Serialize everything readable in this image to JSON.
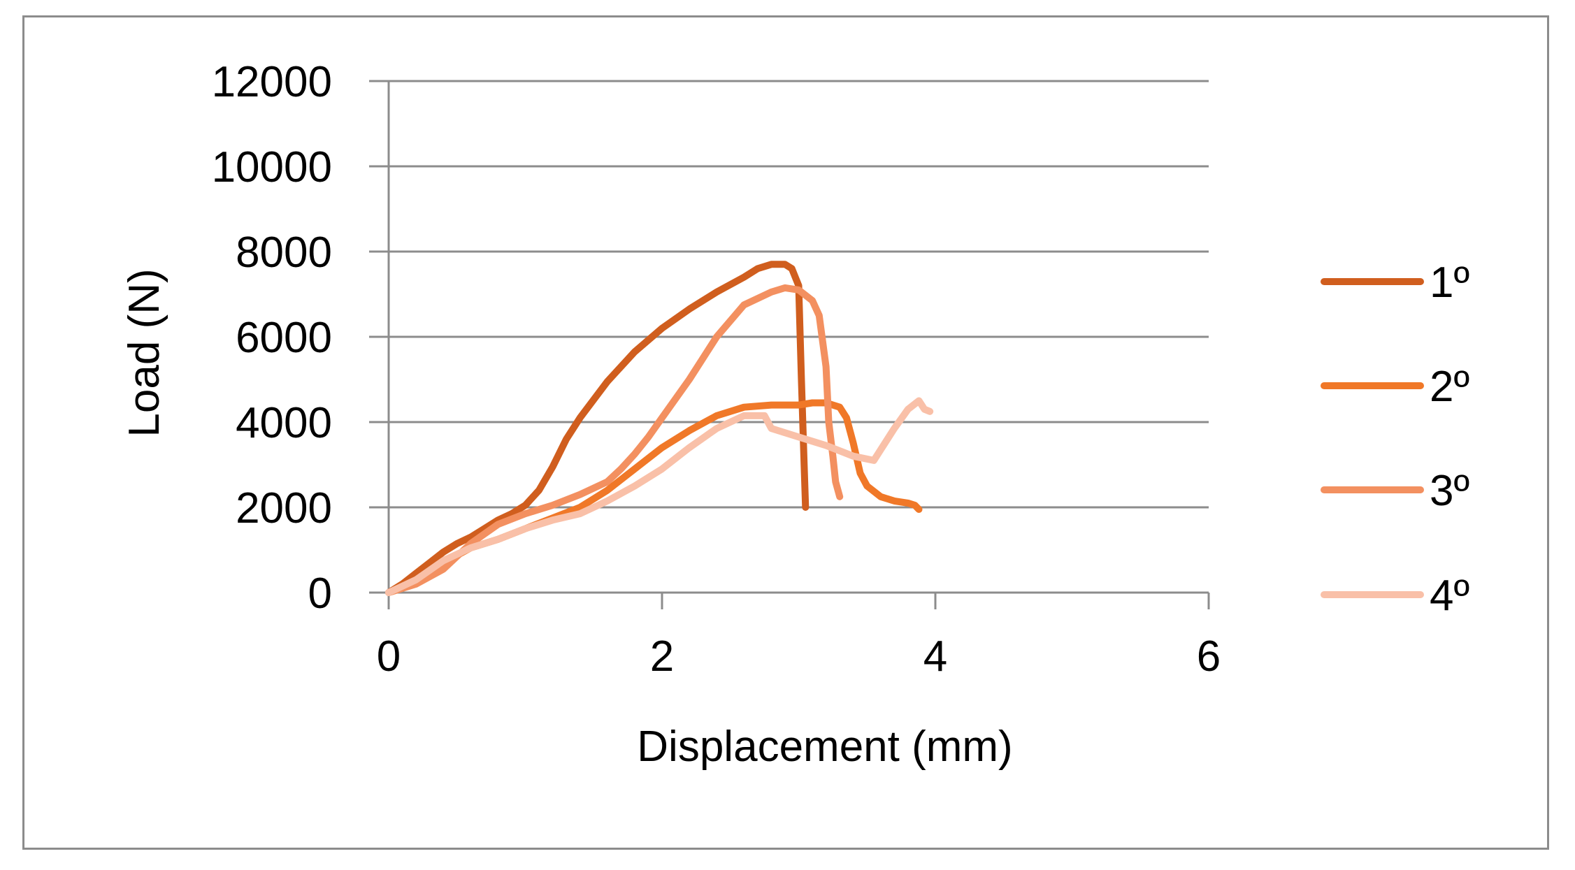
{
  "chart_data": {
    "type": "line",
    "title": "",
    "xlabel": "Displacement (mm)",
    "ylabel": "Load (N)",
    "xlim": [
      0,
      6
    ],
    "ylim": [
      0,
      12000
    ],
    "xticks": [
      0,
      2,
      4,
      6
    ],
    "yticks": [
      0,
      2000,
      4000,
      6000,
      8000,
      10000,
      12000
    ],
    "xtick_labels": [
      "0",
      "2",
      "4",
      "6"
    ],
    "ytick_labels": [
      "0",
      "2000",
      "4000",
      "6000",
      "8000",
      "10000",
      "12000"
    ],
    "grid": "horizontal",
    "legend_position": "right",
    "series": [
      {
        "name": "1º",
        "color": "#D05E1E",
        "x": [
          0.0,
          0.1,
          0.2,
          0.3,
          0.4,
          0.5,
          0.6,
          0.7,
          0.8,
          0.9,
          1.0,
          1.1,
          1.2,
          1.3,
          1.4,
          1.6,
          1.8,
          2.0,
          2.2,
          2.4,
          2.6,
          2.7,
          2.8,
          2.9,
          2.95,
          3.0,
          3.02,
          3.04,
          3.05
        ],
        "y": [
          0,
          200,
          450,
          700,
          950,
          1150,
          1300,
          1500,
          1700,
          1850,
          2050,
          2400,
          2950,
          3600,
          4100,
          4950,
          5650,
          6200,
          6650,
          7050,
          7400,
          7600,
          7700,
          7700,
          7600,
          7200,
          5000,
          3000,
          2000
        ]
      },
      {
        "name": "2º",
        "color": "#F07828",
        "x": [
          0.0,
          0.1,
          0.2,
          0.4,
          0.6,
          0.8,
          1.0,
          1.2,
          1.4,
          1.6,
          1.8,
          2.0,
          2.2,
          2.4,
          2.6,
          2.8,
          3.0,
          3.1,
          3.2,
          3.3,
          3.35,
          3.4,
          3.45,
          3.5,
          3.6,
          3.7,
          3.8,
          3.85,
          3.88
        ],
        "y": [
          0,
          100,
          300,
          700,
          1050,
          1250,
          1500,
          1750,
          2000,
          2400,
          2900,
          3400,
          3800,
          4150,
          4350,
          4400,
          4400,
          4450,
          4450,
          4350,
          4100,
          3500,
          2800,
          2500,
          2250,
          2150,
          2100,
          2050,
          1950
        ]
      },
      {
        "name": "3º",
        "color": "#F39060",
        "x": [
          0.0,
          0.2,
          0.4,
          0.6,
          0.8,
          1.0,
          1.2,
          1.4,
          1.6,
          1.7,
          1.8,
          1.9,
          2.0,
          2.2,
          2.4,
          2.6,
          2.8,
          2.9,
          3.0,
          3.1,
          3.15,
          3.2,
          3.22,
          3.25,
          3.27,
          3.3
        ],
        "y": [
          0,
          200,
          550,
          1150,
          1600,
          1850,
          2050,
          2300,
          2600,
          2900,
          3250,
          3650,
          4100,
          5000,
          6000,
          6750,
          7050,
          7150,
          7100,
          6850,
          6500,
          5300,
          4000,
          3200,
          2600,
          2250
        ]
      },
      {
        "name": "4º",
        "color": "#F9C0A8",
        "x": [
          0.0,
          0.2,
          0.4,
          0.6,
          0.8,
          1.0,
          1.2,
          1.4,
          1.6,
          1.8,
          2.0,
          2.2,
          2.4,
          2.6,
          2.75,
          2.8,
          3.0,
          3.2,
          3.4,
          3.55,
          3.6,
          3.7,
          3.8,
          3.88,
          3.92,
          3.96
        ],
        "y": [
          0,
          300,
          750,
          1050,
          1250,
          1500,
          1700,
          1850,
          2150,
          2500,
          2900,
          3400,
          3850,
          4150,
          4150,
          3850,
          3650,
          3450,
          3200,
          3100,
          3350,
          3850,
          4300,
          4500,
          4300,
          4250
        ]
      }
    ]
  }
}
